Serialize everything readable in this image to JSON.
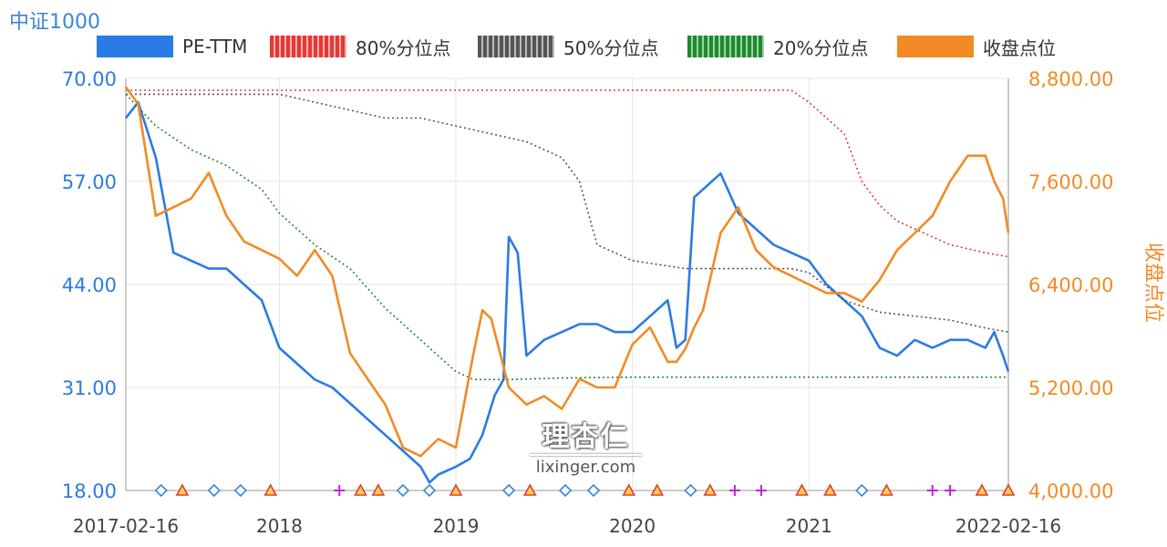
{
  "title": "中证1000",
  "legend": [
    {
      "label": "PE-TTM",
      "color": "#2a7be4"
    },
    {
      "label": "80%分位点",
      "color": "#e53935"
    },
    {
      "label": "50%分位点",
      "color": "#555555"
    },
    {
      "label": "20%分位点",
      "color": "#1e8a2e"
    },
    {
      "label": "收盘点位",
      "color": "#f28a25"
    }
  ],
  "watermark": {
    "logo": "理杏仁",
    "url": "lixinger.com"
  },
  "chart_data": {
    "type": "line",
    "x_ticks": [
      "2017-02-16",
      "2018",
      "2019",
      "2020",
      "2021",
      "2022-02-16"
    ],
    "x_tick_pos": [
      2017.13,
      2018.0,
      2019.0,
      2020.0,
      2021.0,
      2022.13
    ],
    "xlim": [
      2017.13,
      2022.13
    ],
    "y_left": {
      "label": "",
      "ticks": [
        "70.00",
        "57.00",
        "44.00",
        "31.00",
        "18.00"
      ],
      "ylim": [
        18,
        70
      ]
    },
    "y_right": {
      "label": "收盘点位",
      "ticks": [
        "8,800.00",
        "7,600.00",
        "6,400.00",
        "5,200.00",
        "4,000.00"
      ],
      "ylim": [
        4000,
        8800
      ]
    },
    "series": [
      {
        "name": "PE-TTM",
        "axis": "left",
        "color": "#2a7be4",
        "x": [
          2017.13,
          2017.2,
          2017.3,
          2017.4,
          2017.5,
          2017.6,
          2017.7,
          2017.8,
          2017.9,
          2018.0,
          2018.1,
          2018.2,
          2018.3,
          2018.4,
          2018.5,
          2018.6,
          2018.7,
          2018.8,
          2018.85,
          2018.9,
          2019.0,
          2019.08,
          2019.15,
          2019.22,
          2019.27,
          2019.3,
          2019.35,
          2019.4,
          2019.5,
          2019.6,
          2019.7,
          2019.8,
          2019.9,
          2020.0,
          2020.1,
          2020.2,
          2020.25,
          2020.3,
          2020.35,
          2020.4,
          2020.5,
          2020.6,
          2020.7,
          2020.8,
          2020.9,
          2021.0,
          2021.1,
          2021.2,
          2021.3,
          2021.4,
          2021.5,
          2021.6,
          2021.7,
          2021.8,
          2021.9,
          2022.0,
          2022.05,
          2022.1,
          2022.13
        ],
        "y": [
          65,
          67,
          60,
          48,
          47,
          46,
          46,
          44,
          42,
          36,
          34,
          32,
          31,
          29,
          27,
          25,
          23,
          21,
          19,
          20,
          21,
          22,
          25,
          30,
          32,
          50,
          48,
          35,
          37,
          38,
          39,
          39,
          38,
          38,
          40,
          42,
          36,
          37,
          55,
          56,
          58,
          53,
          51,
          49,
          48,
          47,
          44,
          42,
          40,
          36,
          35,
          37,
          36,
          37,
          37,
          36,
          38,
          35,
          33
        ]
      },
      {
        "name": "80%分位点",
        "axis": "left",
        "color": "#e53935",
        "x": [
          2017.13,
          2017.5,
          2018.0,
          2018.5,
          2019.0,
          2019.5,
          2020.0,
          2020.5,
          2020.9,
          2021.0,
          2021.2,
          2021.3,
          2021.4,
          2021.5,
          2021.6,
          2021.7,
          2021.8,
          2021.9,
          2022.0,
          2022.13
        ],
        "y": [
          68.5,
          68.5,
          68.5,
          68.5,
          68.5,
          68.5,
          68.5,
          68.5,
          68.5,
          67,
          63,
          57,
          54,
          52,
          51,
          50,
          49,
          48.5,
          48,
          47.5
        ]
      },
      {
        "name": "50%分位点",
        "axis": "left",
        "color": "#555555",
        "x": [
          2017.13,
          2017.5,
          2018.0,
          2018.2,
          2018.4,
          2018.6,
          2018.8,
          2019.0,
          2019.2,
          2019.4,
          2019.6,
          2019.7,
          2019.8,
          2020.0,
          2020.3,
          2020.6,
          2020.9,
          2021.0,
          2021.2,
          2021.4,
          2021.6,
          2021.8,
          2022.0,
          2022.13
        ],
        "y": [
          68,
          68,
          68,
          67,
          66,
          65,
          65,
          64,
          63,
          62,
          60,
          57,
          49,
          47,
          46,
          46,
          46,
          45.5,
          42,
          40.5,
          40,
          39.5,
          38.5,
          38
        ]
      },
      {
        "name": "20%分位点",
        "axis": "left",
        "color": "#1e8a2e",
        "x": [
          2017.13,
          2017.3,
          2017.5,
          2017.7,
          2017.9,
          2018.0,
          2018.2,
          2018.4,
          2018.6,
          2018.8,
          2019.0,
          2019.1,
          2019.2,
          2019.3,
          2019.6,
          2020.0,
          2020.5,
          2021.0,
          2021.5,
          2022.0,
          2022.13
        ],
        "y": [
          68,
          64,
          61,
          59,
          56,
          53,
          49,
          46,
          41,
          37,
          33,
          32,
          32,
          32,
          32.2,
          32.3,
          32.3,
          32.3,
          32.3,
          32.3,
          32.3
        ]
      },
      {
        "name": "收盘点位",
        "axis": "right",
        "color": "#f28a25",
        "x": [
          2017.13,
          2017.2,
          2017.3,
          2017.4,
          2017.5,
          2017.6,
          2017.7,
          2017.8,
          2017.9,
          2018.0,
          2018.1,
          2018.2,
          2018.3,
          2018.4,
          2018.5,
          2018.6,
          2018.7,
          2018.8,
          2018.9,
          2019.0,
          2019.1,
          2019.15,
          2019.2,
          2019.3,
          2019.4,
          2019.5,
          2019.6,
          2019.7,
          2019.8,
          2019.9,
          2020.0,
          2020.1,
          2020.2,
          2020.25,
          2020.3,
          2020.35,
          2020.4,
          2020.5,
          2020.6,
          2020.7,
          2020.8,
          2020.9,
          2021.0,
          2021.1,
          2021.2,
          2021.3,
          2021.4,
          2021.5,
          2021.6,
          2021.7,
          2021.8,
          2021.9,
          2022.0,
          2022.05,
          2022.1,
          2022.13
        ],
        "y": [
          8700,
          8500,
          7200,
          7300,
          7400,
          7700,
          7200,
          6900,
          6800,
          6700,
          6500,
          6800,
          6500,
          5600,
          5300,
          5000,
          4500,
          4400,
          4600,
          4500,
          5600,
          6100,
          6000,
          5200,
          5000,
          5100,
          4950,
          5300,
          5200,
          5200,
          5700,
          5900,
          5500,
          5500,
          5650,
          5900,
          6100,
          7000,
          7300,
          6800,
          6600,
          6500,
          6400,
          6300,
          6300,
          6200,
          6450,
          6800,
          7000,
          7200,
          7600,
          7900,
          7900,
          7600,
          7400,
          7000
        ]
      }
    ],
    "markers": [
      {
        "shape": "diamond",
        "x": [
          2017.33,
          2017.63,
          2017.78,
          2018.7,
          2018.85,
          2019.3,
          2019.62,
          2019.78,
          2020.33,
          2021.3
        ],
        "color": "#3a86d8"
      },
      {
        "shape": "triangle",
        "x": [
          2017.45,
          2017.95,
          2018.46,
          2018.56,
          2019.0,
          2019.42,
          2019.98,
          2020.14,
          2020.44,
          2020.96,
          2021.12,
          2021.44,
          2021.98,
          2022.13
        ],
        "color": "#e53935"
      },
      {
        "shape": "plus",
        "x": [
          2018.34,
          2020.58,
          2020.73,
          2021.7,
          2021.8
        ],
        "color": "#c026d3"
      }
    ],
    "grid": true,
    "legend": "top"
  }
}
